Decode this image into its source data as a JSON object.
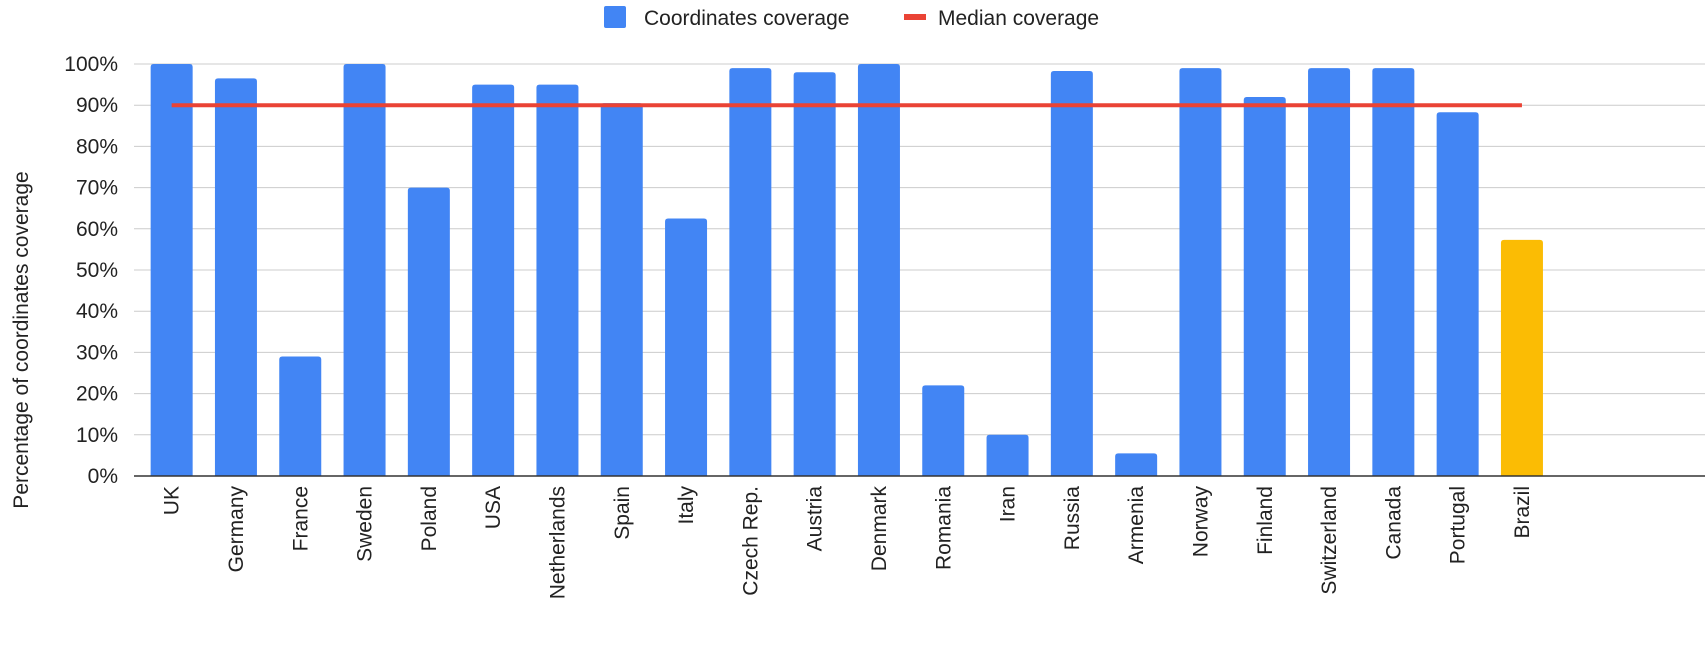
{
  "chart_data": {
    "type": "bar",
    "ylabel": "Percentage of coordinates coverage",
    "xlabel": "",
    "ylim": [
      0,
      100
    ],
    "ytick_values": [
      0,
      10,
      20,
      30,
      40,
      50,
      60,
      70,
      80,
      90,
      100
    ],
    "ytick_labels": [
      "0%",
      "10%",
      "20%",
      "30%",
      "40%",
      "50%",
      "60%",
      "70%",
      "80%",
      "90%",
      "100%"
    ],
    "grid": true,
    "legend_position": "top-center",
    "categories": [
      "UK",
      "Germany",
      "France",
      "Sweden",
      "Poland",
      "USA",
      "Netherlands",
      "Spain",
      "Italy",
      "Czech Rep.",
      "Austria",
      "Denmark",
      "Romania",
      "Iran",
      "Russia",
      "Armenia",
      "Norway",
      "Finland",
      "Switzerland",
      "Canada",
      "Portugal",
      "Brazil"
    ],
    "series": [
      {
        "name": "Coordinates coverage",
        "kind": "bar",
        "color": "#4285F4",
        "values": [
          100,
          96.5,
          29,
          100,
          70,
          95,
          95,
          90.5,
          62.5,
          99,
          98,
          100,
          22,
          10,
          98.3,
          5.5,
          99,
          92,
          99,
          99,
          88.3,
          57.3
        ],
        "highlight": {
          "category": "Brazil",
          "color": "#FBBC04"
        }
      },
      {
        "name": "Median coverage",
        "kind": "line",
        "color": "#EA4335",
        "value": 90
      }
    ]
  }
}
